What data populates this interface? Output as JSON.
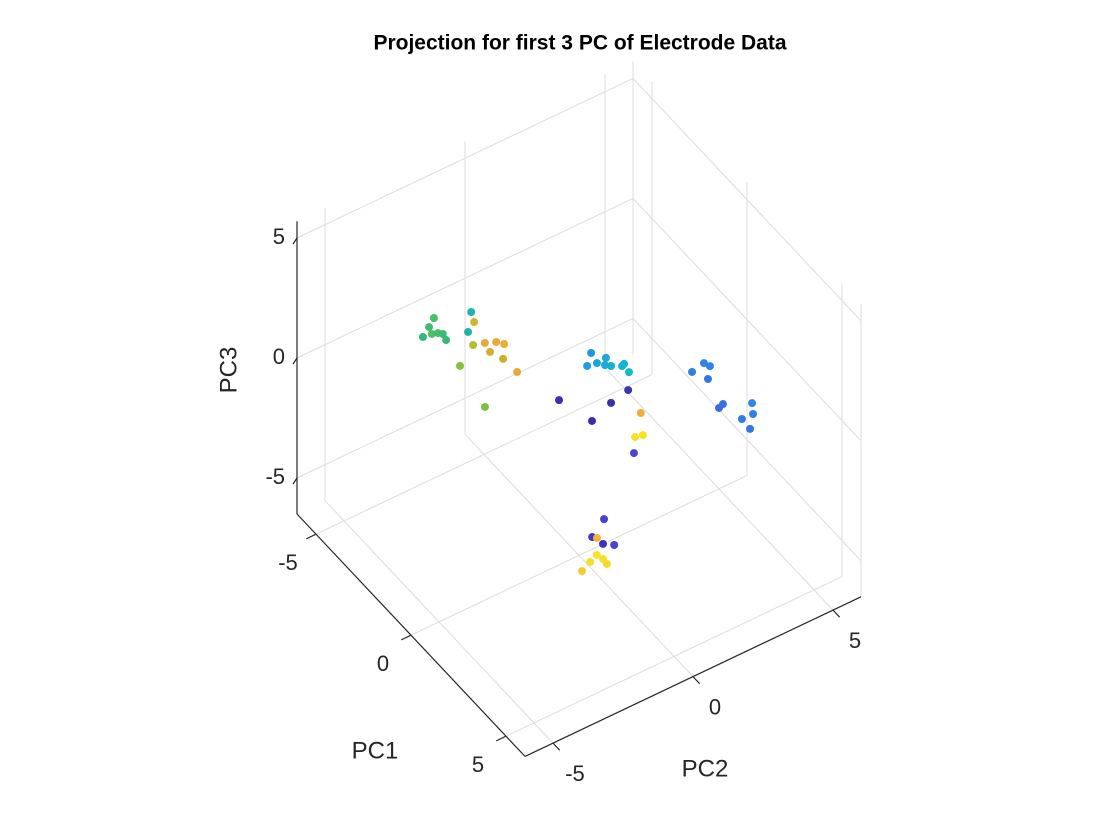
{
  "chart_data": {
    "type": "scatter3d",
    "title": "Projection for first 3 PC of Electrode Data",
    "xlabel": "PC1",
    "ylabel": "PC2",
    "zlabel": "PC3",
    "xlim": [
      -6,
      6
    ],
    "ylim": [
      -6,
      6
    ],
    "zlim": [
      -6.5,
      5.7
    ],
    "xticks": [
      -5,
      0,
      5
    ],
    "yticks": [
      -5,
      0,
      5
    ],
    "zticks": [
      -5,
      0,
      5
    ],
    "grid": true,
    "x": [
      -3.85,
      -4.09,
      -4.32,
      -3.81,
      -3.74,
      -3.63,
      -3.37,
      -3.08,
      -2.09,
      -3.92,
      -3.29,
      -3.53,
      -2.76,
      -2.64,
      -2.25,
      -2.49,
      -2.29,
      -1.8,
      -1.12,
      -0.57,
      -0.19,
      -0.13,
      -0.16,
      0.07,
      0.2,
      0.38,
      0.34,
      0.7,
      1.72,
      1.61,
      1.81,
      2.22,
      3.39,
      3.32,
      3.76,
      4.14,
      4.15,
      4.61,
      -0.3,
      0.48,
      0.64,
      0.95,
      2.73,
      1.47,
      2.2,
      2.26,
      2.04,
      2.46,
      2.87,
      3.09,
      2.57,
      3.15,
      3.28,
      3.39,
      3.62,
      3.46
    ],
    "y": [
      -2.96,
      -2.58,
      -2.25,
      -2.67,
      -2.5,
      -2.4,
      -2.46,
      -2.16,
      -1.94,
      -1.19,
      -1.73,
      -1.35,
      -1.91,
      -1.57,
      -1.65,
      -1.27,
      -1.12,
      -1.49,
      -1.45,
      0.82,
      0.42,
      0.73,
      1.07,
      0.88,
      1.01,
      1.28,
      1.38,
      1.31,
      2.87,
      3.37,
      3.45,
      3.1,
      2.7,
      2.89,
      3.63,
      3.01,
      3.4,
      2.98,
      -0.51,
      1.43,
      0.71,
      -0.18,
      0.11,
      1.21,
      0.51,
      0.75,
      -0.49,
      -1.2,
      -1.09,
      -0.84,
      -1.1,
      -1.5,
      -1.83,
      -1.44,
      -1.46,
      -2.24
    ],
    "z": [
      1,
      1,
      1,
      1,
      1,
      1,
      1,
      0,
      -1,
      1,
      1,
      1,
      1,
      1,
      1,
      1,
      1,
      1,
      1,
      1,
      1,
      1,
      1,
      1,
      1,
      1,
      1,
      1,
      1,
      1,
      1,
      1,
      1,
      1,
      1,
      1,
      1,
      1,
      0,
      0,
      0,
      0,
      0,
      0,
      0,
      0,
      -3,
      -3,
      -3,
      -3,
      -3,
      -3,
      -3,
      -3,
      -3,
      -3
    ],
    "colors": [
      "#35b779",
      "#40bd72",
      "#45c06a",
      "#4cc164",
      "#45be6d",
      "#3dbb74",
      "#38b977",
      "#86c23c",
      "#7cc242",
      "#1fb3b6",
      "#1db5a6",
      "#c8b82b",
      "#b0bd30",
      "#e8aa38",
      "#d4b032",
      "#eca93a",
      "#e8ad35",
      "#c9b22e",
      "#e5a93a",
      "#1a98e0",
      "#1c9fdc",
      "#1aa5da",
      "#1ca8d8",
      "#1caad6",
      "#14b2d0",
      "#12b6cc",
      "#14b5cd",
      "#10bcc6",
      "#2e7fe6",
      "#2f86e6",
      "#2e84e6",
      "#3478e4",
      "#3a6ee0",
      "#3772e2",
      "#2f86e6",
      "#317ce4",
      "#317ee5",
      "#3476e3",
      "#3d2fae",
      "#3c33b5",
      "#3a2fa8",
      "#3e2ba8",
      "#4b47d4",
      "#f0ac3a",
      "#f5e024",
      "#f8e51e",
      "#4a3fd0",
      "#4338c8",
      "#3e34bc",
      "#4a42d0",
      "#f2b33a",
      "#f8e22a",
      "#f7de2c",
      "#f4e02c",
      "#f5d92a",
      "#f3cb2c"
    ]
  }
}
